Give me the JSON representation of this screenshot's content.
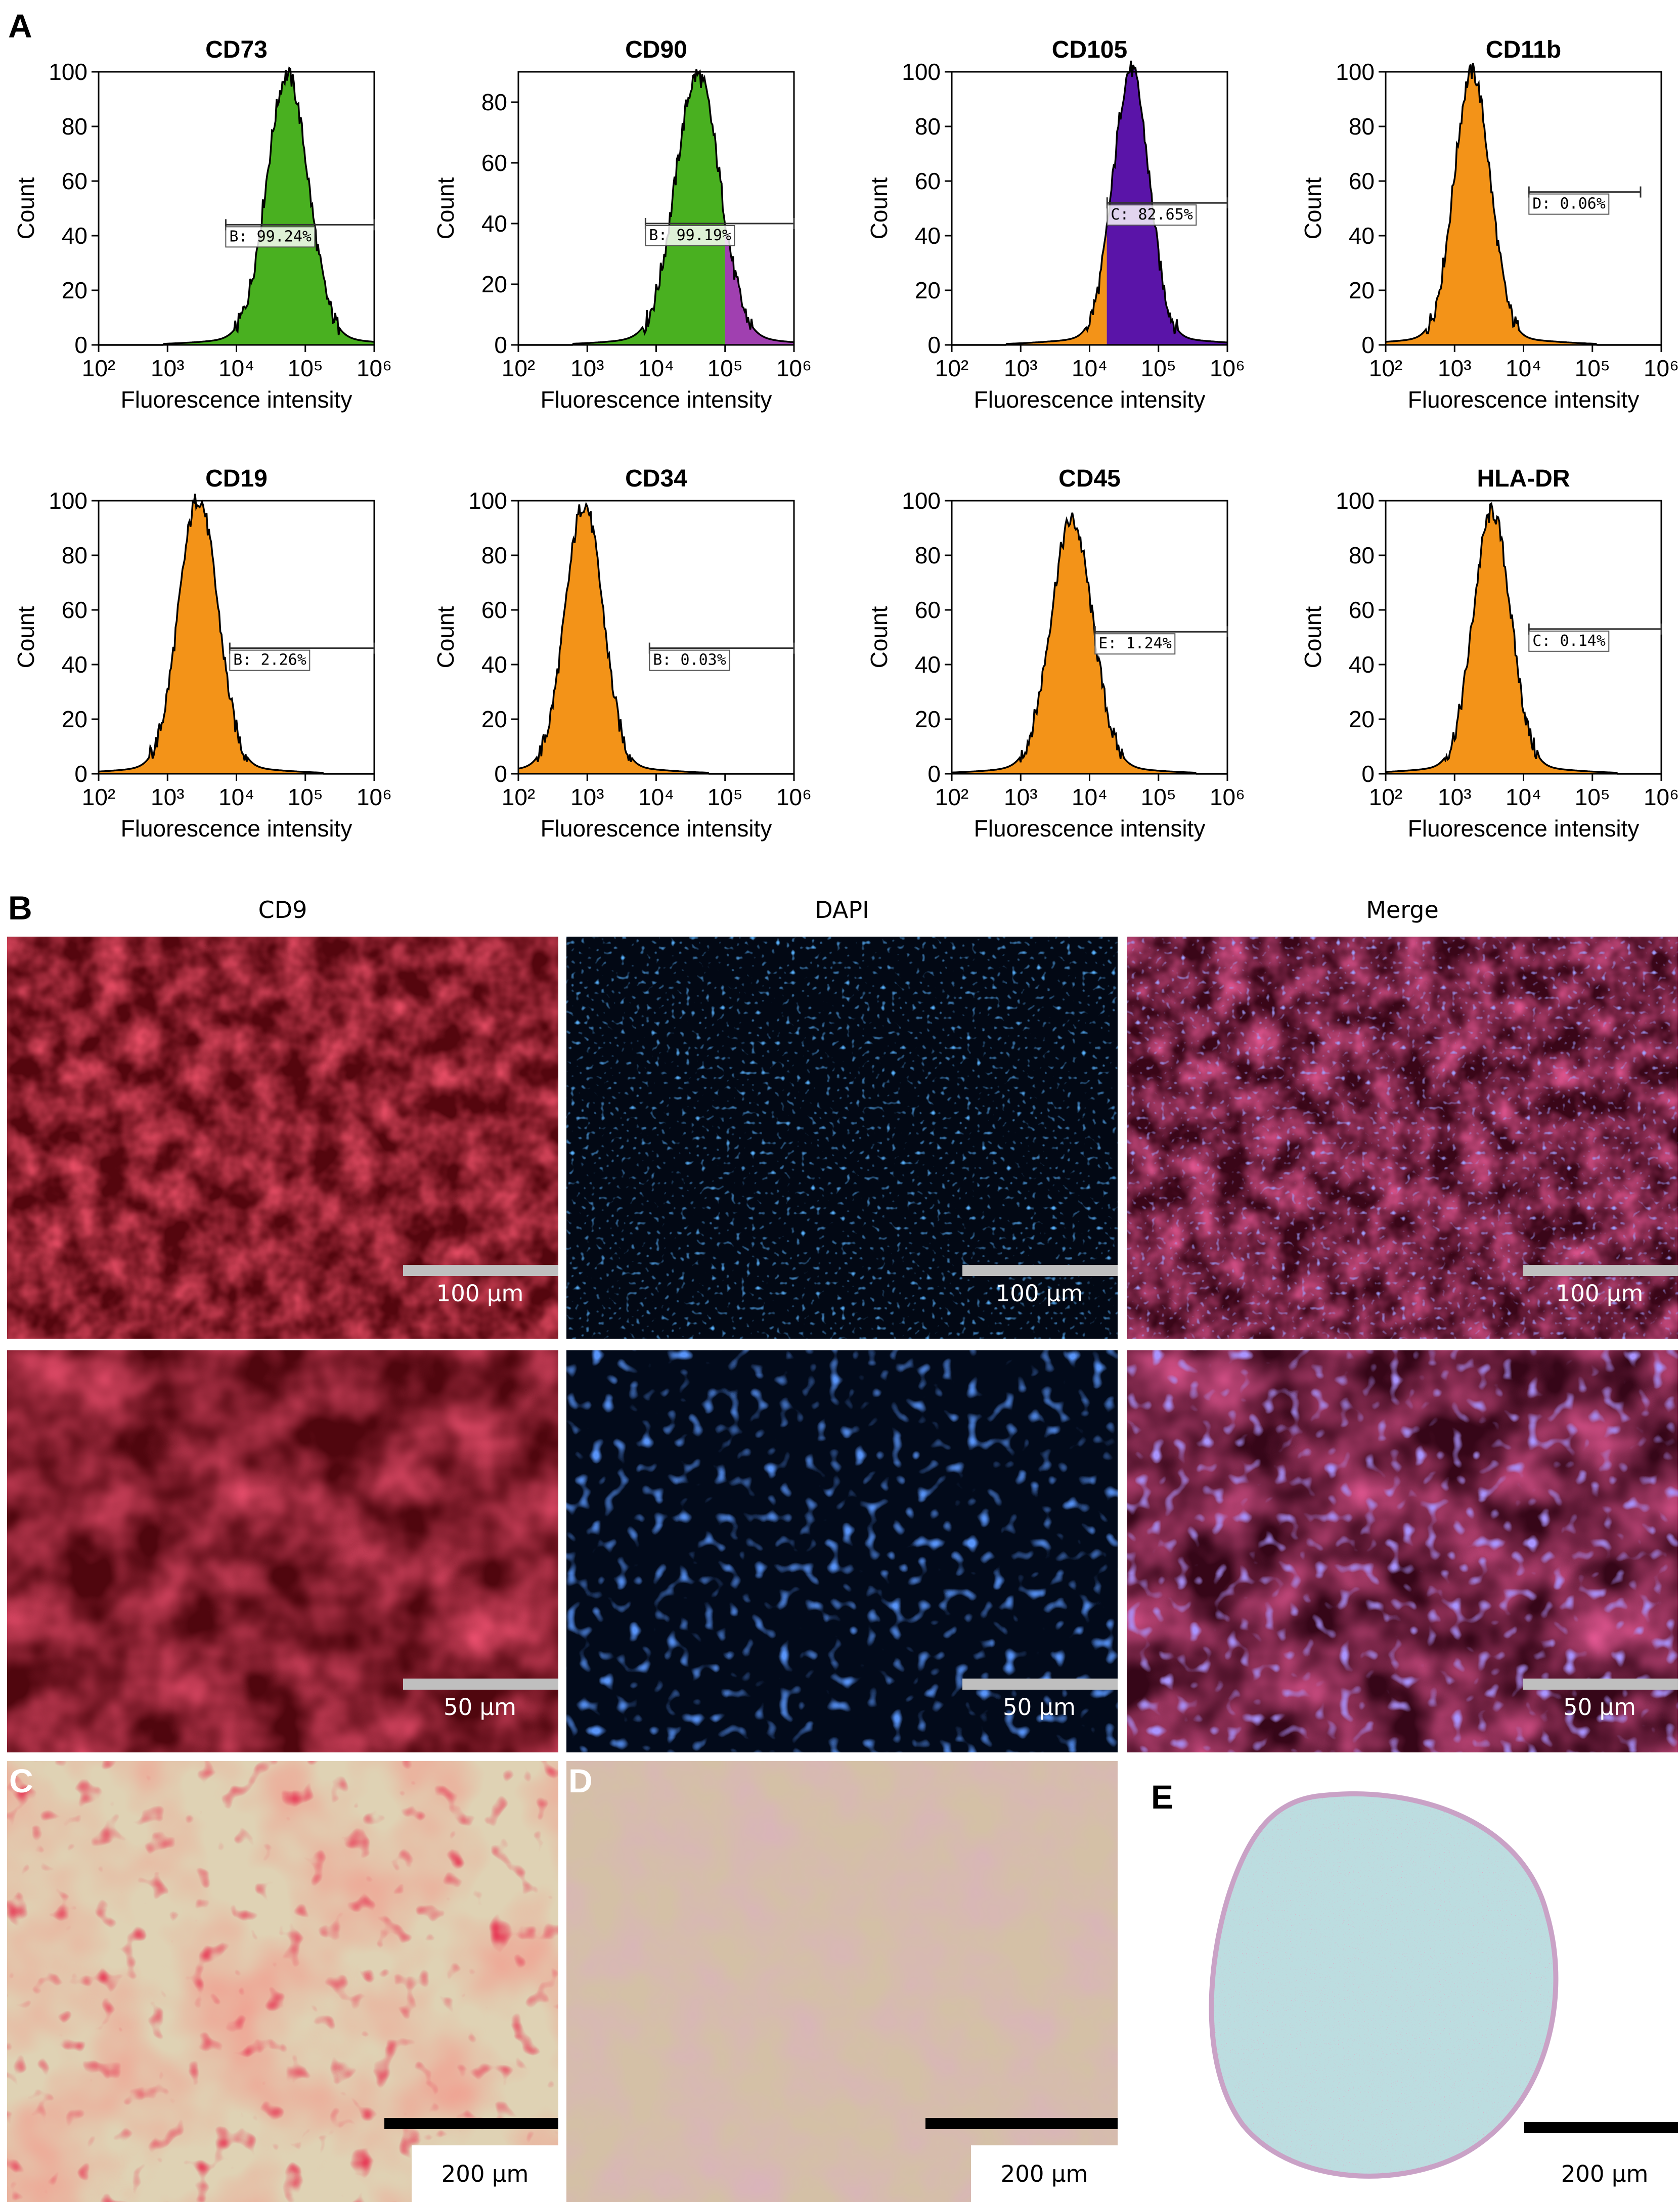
{
  "panel_labels": {
    "a": "A",
    "b": "B",
    "c": "C",
    "d": "D",
    "e": "E"
  },
  "histogram_axes": {
    "xlabel": "Fluorescence intensity",
    "ylabel": "Count",
    "x_ticks": [
      "10²",
      "10³",
      "10⁴",
      "10⁵",
      "10⁶"
    ]
  },
  "chart_data": [
    {
      "type": "area",
      "title": "CD73",
      "xscale": "log",
      "xlim": [
        100,
        1000000
      ],
      "ylim": [
        0,
        100
      ],
      "y_ticks": [
        0,
        20,
        40,
        60,
        80,
        100
      ],
      "peak": 55000,
      "peak_count": 96,
      "sigma": 0.3,
      "colors": [
        "#49b020"
      ],
      "gate": {
        "label": "B: 99.24%",
        "from": 7000,
        "to": 1000000,
        "y": 44
      }
    },
    {
      "type": "area",
      "title": "CD90",
      "xscale": "log",
      "xlim": [
        100,
        1000000
      ],
      "ylim": [
        0,
        90
      ],
      "y_ticks": [
        0,
        20,
        40,
        60,
        80
      ],
      "peak": 40000,
      "peak_count": 86,
      "sigma": 0.32,
      "colors": [
        "#49b020",
        "#a040b0"
      ],
      "split": 100000,
      "gate": {
        "label": "B: 99.19%",
        "from": 7000,
        "to": 1000000,
        "y": 40
      }
    },
    {
      "type": "area",
      "title": "CD105",
      "xscale": "log",
      "xlim": [
        100,
        1000000
      ],
      "ylim": [
        0,
        100
      ],
      "y_ticks": [
        0,
        20,
        40,
        60,
        80,
        100
      ],
      "peak": 40000,
      "peak_count": 98,
      "sigma": 0.26,
      "colors": [
        "#f39318",
        "#5a14a8"
      ],
      "split": 18000,
      "gate": {
        "label": "C: 82.65%",
        "from": 18000,
        "to": 1000000,
        "y": 52
      }
    },
    {
      "type": "area",
      "title": "CD11b",
      "xscale": "log",
      "xlim": [
        100,
        1000000
      ],
      "ylim": [
        0,
        100
      ],
      "y_ticks": [
        0,
        20,
        40,
        60,
        80,
        100
      ],
      "peak": 1800,
      "peak_count": 97,
      "sigma": 0.26,
      "colors": [
        "#f39318"
      ],
      "gate": {
        "label": "D: 0.06%",
        "from": 12000,
        "to": 500000,
        "y": 56
      }
    },
    {
      "type": "area",
      "title": "CD19",
      "xscale": "log",
      "xlim": [
        100,
        1000000
      ],
      "ylim": [
        0,
        100
      ],
      "y_ticks": [
        0,
        20,
        40,
        60,
        80,
        100
      ],
      "peak": 2800,
      "peak_count": 98,
      "sigma": 0.28,
      "colors": [
        "#f39318"
      ],
      "gate": {
        "label": "B: 2.26%",
        "from": 8000,
        "to": 1000000,
        "y": 46
      }
    },
    {
      "type": "area",
      "title": "CD34",
      "xscale": "log",
      "xlim": [
        100,
        1000000
      ],
      "ylim": [
        0,
        100
      ],
      "y_ticks": [
        0,
        20,
        40,
        60,
        80,
        100
      ],
      "peak": 900,
      "peak_count": 96,
      "sigma": 0.27,
      "colors": [
        "#f39318"
      ],
      "gate": {
        "label": "B: 0.03%",
        "from": 8000,
        "to": 1000000,
        "y": 46
      }
    },
    {
      "type": "area",
      "title": "CD45",
      "xscale": "log",
      "xlim": [
        100,
        1000000
      ],
      "ylim": [
        0,
        100
      ],
      "y_ticks": [
        0,
        20,
        40,
        60,
        80,
        100
      ],
      "peak": 5500,
      "peak_count": 90,
      "sigma": 0.3,
      "colors": [
        "#f39318"
      ],
      "gate": {
        "label": "E: 1.24%",
        "from": 12000,
        "to": 1000000,
        "y": 52
      }
    },
    {
      "type": "area",
      "title": "HLA-DR",
      "xscale": "log",
      "xlim": [
        100,
        1000000
      ],
      "ylim": [
        0,
        100
      ],
      "y_ticks": [
        0,
        20,
        40,
        60,
        80,
        100
      ],
      "peak": 3500,
      "peak_count": 93,
      "sigma": 0.27,
      "colors": [
        "#f39318"
      ],
      "gate": {
        "label": "C: 0.14%",
        "from": 12000,
        "to": 1000000,
        "y": 53
      }
    }
  ],
  "panel_b": {
    "columns": [
      "CD9",
      "DAPI",
      "Merge"
    ],
    "row_scale_labels": [
      "100 μm",
      "50 μm"
    ]
  },
  "panel_cde": {
    "scale_labels": [
      "200 μm",
      "200 μm",
      "200 μm"
    ]
  }
}
